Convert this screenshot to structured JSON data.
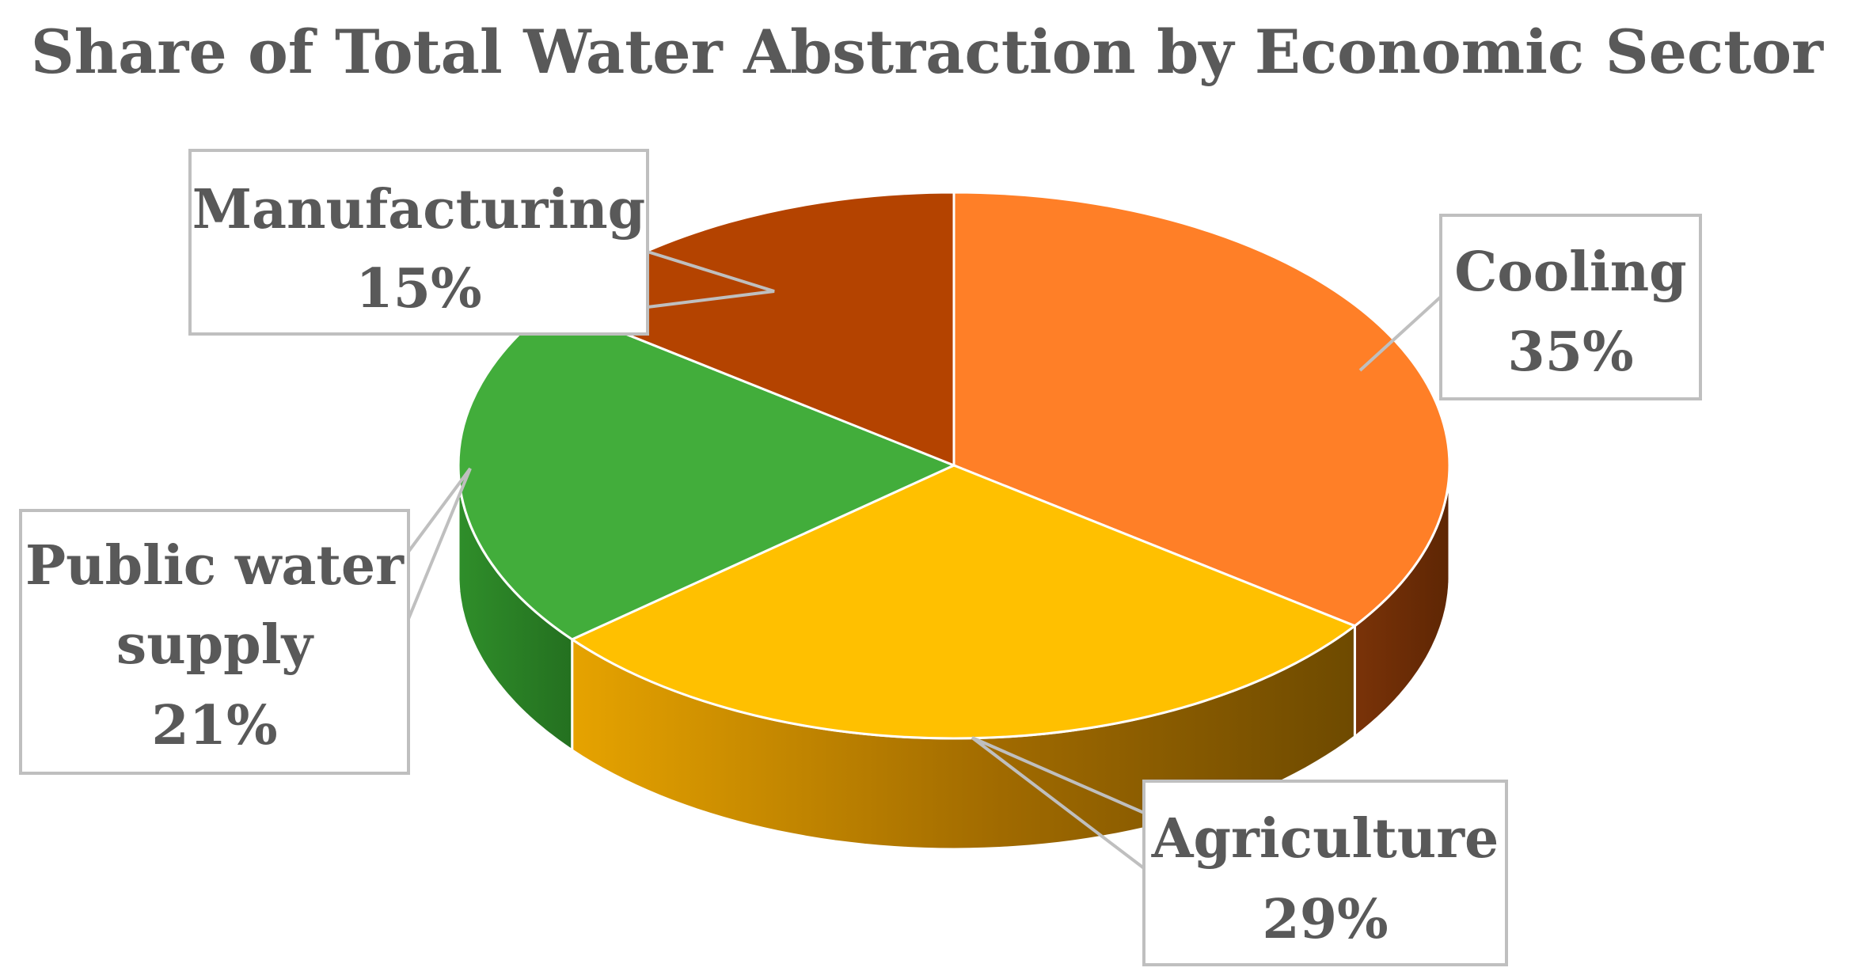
{
  "chart_data": {
    "type": "pie",
    "style": "3d",
    "title": "Share of Total Water Abstraction by Economic Sector",
    "slices": [
      {
        "label": "Cooling",
        "value": 35,
        "value_label": "35%",
        "color": "#FF7F27",
        "side_color": "#8B3A0A"
      },
      {
        "label": "Agriculture",
        "value": 29,
        "value_label": "29%",
        "color": "#FFC000",
        "side_color": "#B8860B"
      },
      {
        "label": "Public water supply",
        "label_lines": [
          "Public water",
          "supply"
        ],
        "value": 21,
        "value_label": "21%",
        "color": "#42AD3B",
        "side_color": "#2A7A25"
      },
      {
        "label": "Manufacturing",
        "value": 15,
        "value_label": "15%",
        "color": "#B44300",
        "side_color": "#6E2800"
      }
    ],
    "start_angle": "top",
    "direction": "clockwise"
  }
}
